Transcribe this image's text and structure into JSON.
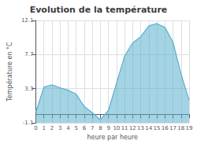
{
  "chart_data": {
    "type": "area",
    "title": "Evolution de la température",
    "x_label": "heure par heure",
    "y_label": "Température en °C",
    "x": [
      0,
      1,
      2,
      3,
      4,
      5,
      6,
      7,
      8,
      9,
      10,
      11,
      12,
      13,
      14,
      15,
      16,
      17,
      18,
      19
    ],
    "values": [
      0.3,
      3.5,
      3.8,
      3.4,
      3.1,
      2.6,
      1.0,
      0.2,
      -0.7,
      0.5,
      4.0,
      7.5,
      9.2,
      10.0,
      11.4,
      11.7,
      11.2,
      9.3,
      5.2,
      1.8
    ],
    "color": "#5ab0cc",
    "xlim": [
      0,
      19
    ],
    "xticks": [
      0,
      1,
      2,
      3,
      4,
      5,
      6,
      7,
      8,
      9,
      10,
      11,
      12,
      13,
      14,
      15,
      16,
      17,
      18,
      19
    ],
    "ylim": [
      -1.1,
      12.1
    ],
    "yticks": [
      -1.1,
      3.3,
      7.7,
      12.1
    ],
    "grid": true
  }
}
